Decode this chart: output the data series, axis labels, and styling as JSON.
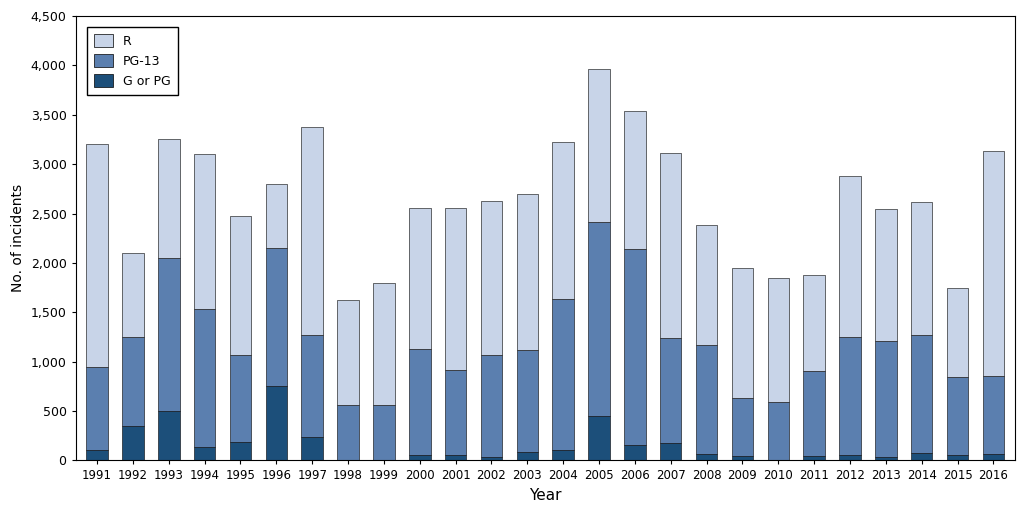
{
  "years": [
    1991,
    1992,
    1993,
    1994,
    1995,
    1996,
    1997,
    1998,
    1999,
    2000,
    2001,
    2002,
    2003,
    2004,
    2005,
    2006,
    2007,
    2008,
    2009,
    2010,
    2011,
    2012,
    2013,
    2014,
    2015,
    2016
  ],
  "R": [
    2250,
    850,
    1200,
    1570,
    1400,
    650,
    2110,
    1060,
    1240,
    1430,
    1650,
    1560,
    1580,
    1590,
    1550,
    1400,
    1875,
    1210,
    1320,
    1260,
    980,
    1635,
    1345,
    1350,
    905,
    2280
  ],
  "PG13": [
    850,
    900,
    1550,
    1400,
    880,
    1400,
    1030,
    560,
    560,
    1080,
    860,
    1040,
    1040,
    1530,
    1960,
    1980,
    1060,
    1110,
    590,
    590,
    860,
    1190,
    1175,
    1200,
    790,
    790
  ],
  "GorPG": [
    100,
    350,
    500,
    130,
    190,
    750,
    240,
    0,
    0,
    50,
    50,
    30,
    80,
    100,
    450,
    160,
    175,
    60,
    40,
    0,
    40,
    55,
    30,
    70,
    55,
    60
  ],
  "color_R": "#c8d4e8",
  "color_PG13": "#5b7faf",
  "color_GorPG": "#1c4f7a",
  "ylabel": "No. of incidents",
  "xlabel": "Year",
  "ylim": [
    0,
    4500
  ],
  "yticks": [
    0,
    500,
    1000,
    1500,
    2000,
    2500,
    3000,
    3500,
    4000,
    4500
  ],
  "bar_width": 0.6
}
